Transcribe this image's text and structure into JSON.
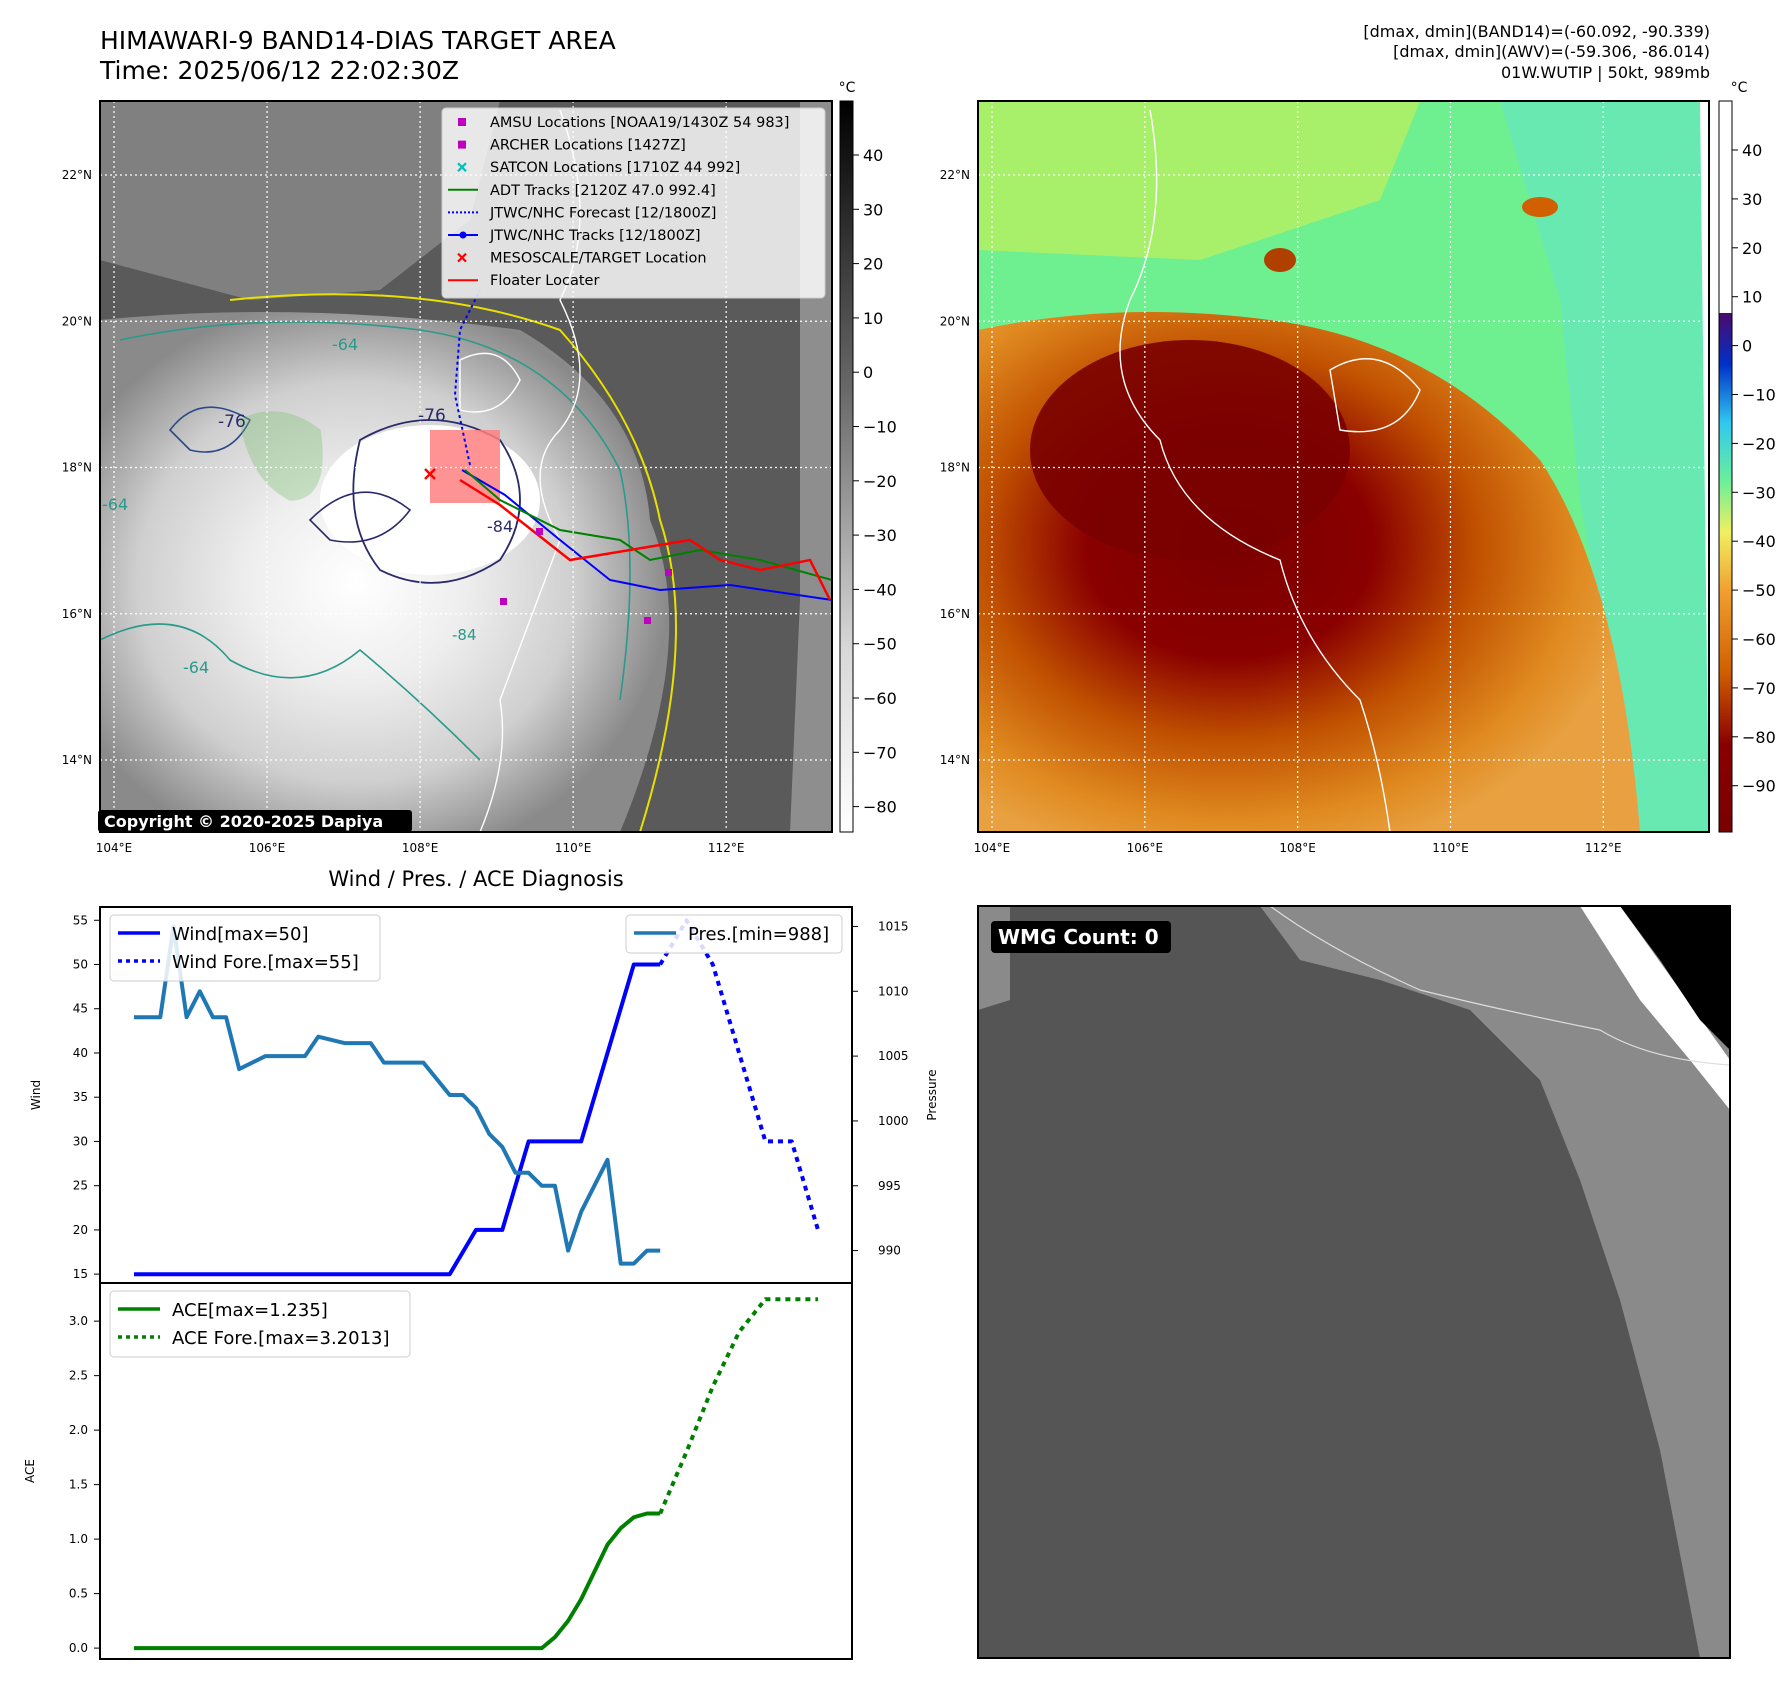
{
  "header": {
    "title_line1": "HIMAWARI-9 BAND14-DIAS TARGET AREA",
    "title_line2": "Time: 2025/06/12 22:02:30Z",
    "info_line1": "[dmax, dmin](BAND14)=(-60.092, -90.339)",
    "info_line2": "[dmax, dmin](AWV)=(-59.306, -86.014)",
    "info_line3": "01W.WUTIP | 50kt, 989mb"
  },
  "map_ir": {
    "copyright": "Copyright © 2020-2025 Dapiya",
    "lon_ticks": [
      "104°E",
      "106°E",
      "108°E",
      "110°E",
      "112°E"
    ],
    "lat_ticks": [
      "22°N",
      "20°N",
      "18°N",
      "16°N",
      "14°N"
    ],
    "colorbar_unit": "°C",
    "colorbar_ticks": [
      "40",
      "30",
      "20",
      "10",
      "0",
      "−10",
      "−20",
      "−30",
      "−40",
      "−50",
      "−60",
      "−70",
      "−80"
    ],
    "contour_labels": [
      "-76",
      "-76",
      "-64",
      "-64",
      "-64",
      "-84",
      "-84"
    ],
    "legend": [
      {
        "label": "AMSU Locations [NOAA19/1430Z 54 983]",
        "marker": "square",
        "color": "#bf00bf"
      },
      {
        "label": "ARCHER Locations [1427Z]",
        "marker": "square",
        "color": "#bf00bf"
      },
      {
        "label": "SATCON Locations [1710Z 44 992]",
        "marker": "x",
        "color": "#00bfbf"
      },
      {
        "label": "ADT Tracks [2120Z 47.0 992.4]",
        "marker": "line",
        "color": "#008000"
      },
      {
        "label": "JTWC/NHC Forecast [12/1800Z]",
        "marker": "dotted",
        "color": "#0000ff"
      },
      {
        "label": "JTWC/NHC Tracks [12/1800Z]",
        "marker": "line-dot",
        "color": "#0000ff"
      },
      {
        "label": "MESOSCALE/TARGET Location",
        "marker": "x",
        "color": "#ff0000"
      },
      {
        "label": "Floater Locater",
        "marker": "line",
        "color": "#ff0000"
      }
    ]
  },
  "map_awv": {
    "lon_ticks": [
      "104°E",
      "106°E",
      "108°E",
      "110°E",
      "112°E"
    ],
    "lat_ticks": [
      "22°N",
      "20°N",
      "18°N",
      "16°N",
      "14°N"
    ],
    "colorbar_unit": "°C",
    "colorbar_ticks": [
      "40",
      "30",
      "20",
      "10",
      "0",
      "−10",
      "−20",
      "−30",
      "−40",
      "−50",
      "−60",
      "−70",
      "−80",
      "−90"
    ]
  },
  "wmg": {
    "badge": "WMG Count: 0"
  },
  "chart_data": [
    {
      "type": "line",
      "title": "Wind / Pres. / ACE Diagnosis",
      "ylabel": "Wind",
      "ylabel_right": "Pressure",
      "ylim": [
        14,
        56.5
      ],
      "ylim_right": [
        987.5,
        1016.5
      ],
      "yticks": [
        "15",
        "20",
        "25",
        "30",
        "35",
        "40",
        "45",
        "50",
        "55"
      ],
      "yticks_right": [
        "990",
        "995",
        "1000",
        "1005",
        "1010",
        "1015"
      ],
      "legend_left": [
        "Wind[max=50]",
        "Wind Fore.[max=55]"
      ],
      "legend_right": [
        "Pres.[min=988]"
      ],
      "x_index_range": [
        0,
        26
      ],
      "series": [
        {
          "name": "Wind[max=50]",
          "color": "#0000ff",
          "style": "solid",
          "axis": "left",
          "x": [
            0,
            1,
            2,
            3,
            4,
            5,
            6,
            7,
            8,
            9,
            10,
            11,
            12,
            13,
            14,
            15,
            16,
            17,
            18,
            19,
            20
          ],
          "values": [
            15,
            15,
            15,
            15,
            15,
            15,
            15,
            15,
            15,
            15,
            15,
            15,
            15,
            20,
            20,
            30,
            30,
            30,
            40,
            50,
            50
          ]
        },
        {
          "name": "Wind Fore.[max=55]",
          "color": "#0000ff",
          "style": "dotted",
          "axis": "left",
          "x": [
            20,
            21,
            22,
            23,
            24,
            25,
            26
          ],
          "values": [
            50,
            55,
            50,
            40,
            30,
            30,
            20
          ]
        },
        {
          "name": "Pres.[min=988]",
          "color": "#1f77b4",
          "style": "solid",
          "axis": "right",
          "x": [
            0,
            0.5,
            1,
            1.5,
            2,
            2.5,
            3,
            3.5,
            4,
            5,
            6,
            6.5,
            7,
            8,
            9,
            9.5,
            10,
            11,
            12,
            12.5,
            13,
            13.5,
            14,
            14.5,
            15,
            15.5,
            16,
            16.5,
            17,
            18,
            18.5,
            19,
            19.5,
            20
          ],
          "values": [
            1008,
            1008,
            1008,
            1015,
            1008,
            1010,
            1008,
            1008,
            1004,
            1005,
            1005,
            1005,
            1006.5,
            1006,
            1006,
            1004.5,
            1004.5,
            1004.5,
            1002,
            1002,
            1001,
            999,
            998,
            996,
            996,
            995,
            995,
            990,
            993,
            997,
            989,
            989,
            990,
            990
          ]
        }
      ]
    },
    {
      "type": "line",
      "ylabel": "ACE",
      "ylim": [
        -0.1,
        3.35
      ],
      "yticks": [
        "0.0",
        "0.5",
        "1.0",
        "1.5",
        "2.0",
        "2.5",
        "3.0"
      ],
      "legend": [
        "ACE[max=1.235]",
        "ACE Fore.[max=3.2013]"
      ],
      "x_index_range": [
        0,
        26
      ],
      "series": [
        {
          "name": "ACE[max=1.235]",
          "color": "#008000",
          "style": "solid",
          "x": [
            0,
            15.5,
            16,
            16.5,
            17,
            17.5,
            18,
            18.5,
            19,
            19.5,
            20
          ],
          "values": [
            0,
            0,
            0.1,
            0.25,
            0.45,
            0.7,
            0.95,
            1.1,
            1.2,
            1.235,
            1.235
          ]
        },
        {
          "name": "ACE Fore.[max=3.2013]",
          "color": "#008000",
          "style": "dotted",
          "x": [
            20,
            21,
            22,
            23,
            24,
            25,
            26
          ],
          "values": [
            1.235,
            1.8,
            2.4,
            2.9,
            3.2013,
            3.2013,
            3.2013
          ]
        }
      ]
    }
  ]
}
